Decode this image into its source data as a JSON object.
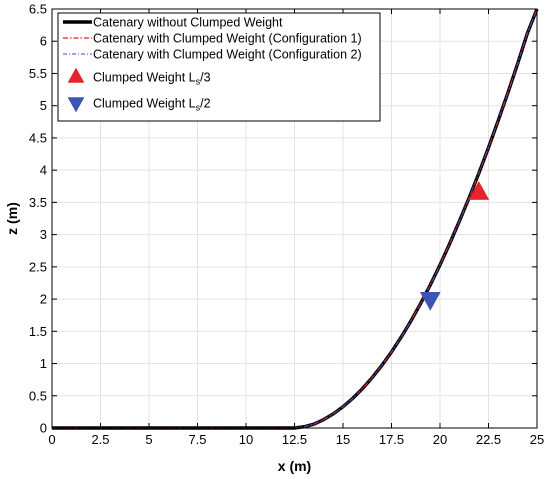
{
  "chart_data": {
    "type": "line",
    "xlabel": "x (m)",
    "ylabel": "z (m)",
    "xlim": [
      0,
      25
    ],
    "ylim": [
      0,
      6.5
    ],
    "xticks": [
      "0",
      "2.5",
      "5",
      "7.5",
      "10",
      "12.5",
      "15",
      "17.5",
      "20",
      "22.5",
      "25"
    ],
    "yticks": [
      "0",
      "0.5",
      "1",
      "1.5",
      "2",
      "2.5",
      "3",
      "3.5",
      "4",
      "4.5",
      "5",
      "5.5",
      "6",
      "6.5"
    ],
    "grid": true,
    "legend_position": "top-left",
    "series": [
      {
        "name": "Catenary without Clumped Weight",
        "color": "#000000",
        "style": "solid",
        "x": [
          0,
          12.5,
          13,
          13.5,
          14,
          14.5,
          15,
          15.5,
          16,
          16.5,
          17,
          17.5,
          18,
          18.5,
          19,
          19.5,
          20,
          20.5,
          21,
          21.5,
          22,
          22.5,
          23,
          23.5,
          24,
          24.5,
          25
        ],
        "y": [
          0,
          0,
          0.02,
          0.06,
          0.13,
          0.22,
          0.33,
          0.46,
          0.61,
          0.78,
          0.97,
          1.18,
          1.41,
          1.66,
          1.93,
          2.22,
          2.53,
          2.86,
          3.21,
          3.57,
          3.95,
          4.35,
          4.77,
          5.2,
          5.65,
          6.12,
          6.5
        ]
      },
      {
        "name": "Catenary with Clumped Weight (Configuration 1)",
        "color": "#e02020",
        "style": "dash-dot",
        "x": [
          0,
          12.5,
          13,
          13.5,
          14,
          14.5,
          15,
          15.5,
          16,
          16.5,
          17,
          17.5,
          18,
          18.5,
          19,
          19.5,
          20,
          20.5,
          21,
          21.5,
          22,
          22.5,
          23,
          23.5,
          24,
          24.5,
          25
        ],
        "y": [
          0,
          0,
          0.02,
          0.06,
          0.13,
          0.22,
          0.33,
          0.46,
          0.61,
          0.78,
          0.97,
          1.18,
          1.41,
          1.66,
          1.93,
          2.22,
          2.53,
          2.86,
          3.21,
          3.57,
          3.95,
          4.35,
          4.77,
          5.2,
          5.65,
          6.12,
          6.5
        ]
      },
      {
        "name": "Catenary with Clumped Weight (Configuration 2)",
        "color": "#3050c8",
        "style": "dash-dot",
        "x": [
          0,
          12.5,
          13,
          13.5,
          14,
          14.5,
          15,
          15.5,
          16,
          16.5,
          17,
          17.5,
          18,
          18.5,
          19,
          19.5,
          20,
          20.5,
          21,
          21.5,
          22,
          22.5,
          23,
          23.5,
          24,
          24.5,
          25
        ],
        "y": [
          0,
          0,
          0.02,
          0.06,
          0.13,
          0.22,
          0.33,
          0.46,
          0.61,
          0.78,
          0.97,
          1.18,
          1.41,
          1.66,
          1.93,
          2.22,
          2.53,
          2.86,
          3.21,
          3.57,
          3.95,
          4.35,
          4.77,
          5.2,
          5.65,
          6.12,
          6.5
        ]
      }
    ],
    "markers": [
      {
        "label_main": "Clumped Weight L",
        "label_sub": "s",
        "label_tail": "/3",
        "shape": "triangle-up",
        "color": "#e8232a",
        "x": 22.0,
        "y": 3.65
      },
      {
        "label_main": "Clumped Weight L",
        "label_sub": "s",
        "label_tail": "/2",
        "shape": "triangle-down",
        "color": "#3a55b4",
        "x": 19.5,
        "y": 2.0
      }
    ]
  }
}
